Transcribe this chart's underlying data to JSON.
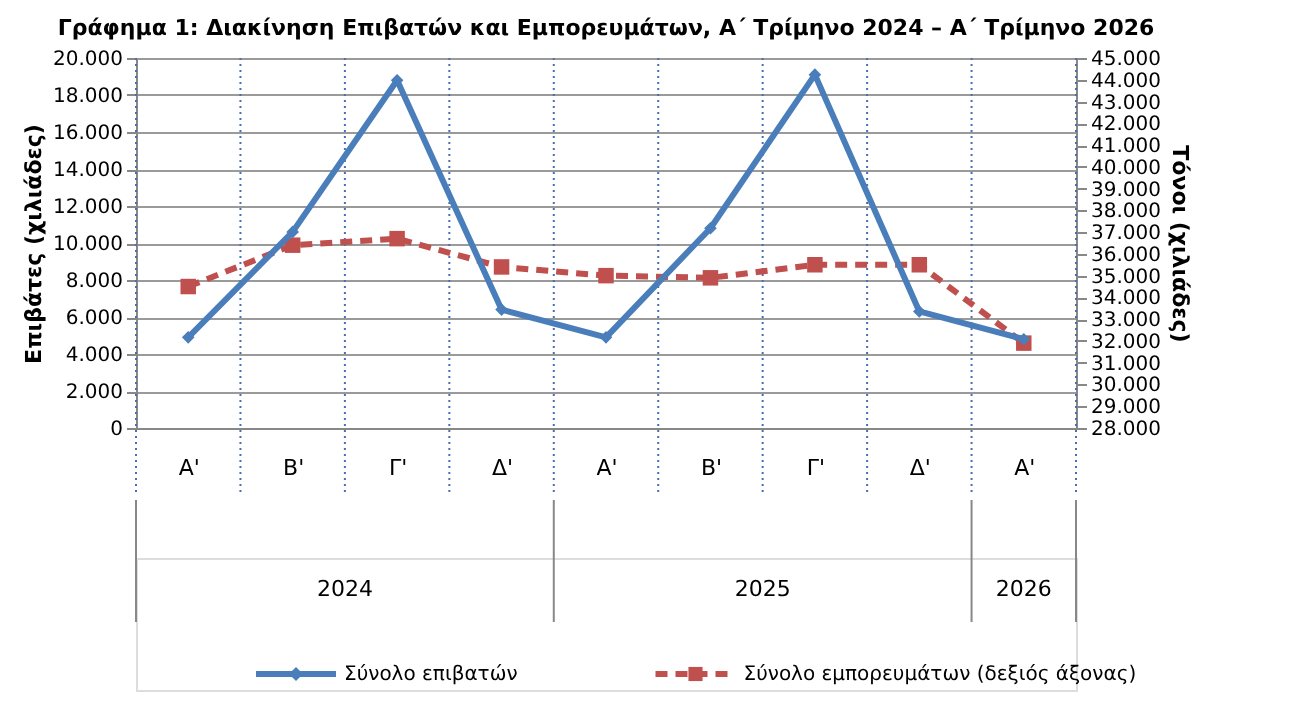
{
  "chart_data": {
    "type": "line",
    "title": "Γράφημα 1: Διακίνηση Επιβατών και Εμπορευμάτων, Α΄ Τρίμηνο 2024 – Α΄ Τρίμηνο 2026",
    "categories": [
      "Α'",
      "Β'",
      "Γ'",
      "Δ'",
      "Α'",
      "Β'",
      "Γ'",
      "Δ'",
      "Α'"
    ],
    "ylabel": "Επιβάτες  (χιλιάδες)",
    "y2label": "Τόνοι  (χιλιάδες)",
    "series": [
      {
        "name": "Σύνολο επιβατών",
        "color": "#4a7ebb",
        "marker": "diamond",
        "line_style": "solid",
        "values": [
          4900,
          10600,
          18800,
          6400,
          4900,
          10800,
          19100,
          6300,
          4800
        ]
      },
      {
        "name": "Σύνολο εμπορευμάτων (δεξιός άξονας)",
        "color": "#c0504d",
        "marker": "square",
        "line_style": "dashed",
        "axis": "y2",
        "values": [
          34500,
          36400,
          36700,
          35400,
          35000,
          34900,
          35500,
          35500,
          31900
        ]
      }
    ],
    "ylim": [
      0,
      20000
    ],
    "yticks": [
      {
        "value": 0,
        "label": "0"
      },
      {
        "value": 2000,
        "label": "2.000"
      },
      {
        "value": 4000,
        "label": "4.000"
      },
      {
        "value": 6000,
        "label": "6.000"
      },
      {
        "value": 8000,
        "label": "8.000"
      },
      {
        "value": 10000,
        "label": "10.000"
      },
      {
        "value": 12000,
        "label": "12.000"
      },
      {
        "value": 14000,
        "label": "14.000"
      },
      {
        "value": 16000,
        "label": "16.000"
      },
      {
        "value": 18000,
        "label": "18.000"
      },
      {
        "value": 20000,
        "label": "20.000"
      }
    ],
    "y2lim": [
      28000,
      45000
    ],
    "y2ticks": [
      {
        "value": 28000,
        "label": "28.000"
      },
      {
        "value": 29000,
        "label": "29.000"
      },
      {
        "value": 30000,
        "label": "30.000"
      },
      {
        "value": 31000,
        "label": "31.000"
      },
      {
        "value": 32000,
        "label": "32.000"
      },
      {
        "value": 33000,
        "label": "33.000"
      },
      {
        "value": 34000,
        "label": "34.000"
      },
      {
        "value": 35000,
        "label": "35.000"
      },
      {
        "value": 36000,
        "label": "36.000"
      },
      {
        "value": 37000,
        "label": "37.000"
      },
      {
        "value": 38000,
        "label": "38.000"
      },
      {
        "value": 39000,
        "label": "39.000"
      },
      {
        "value": 40000,
        "label": "40.000"
      },
      {
        "value": 41000,
        "label": "41.000"
      },
      {
        "value": 42000,
        "label": "42.000"
      },
      {
        "value": 43000,
        "label": "43.000"
      },
      {
        "value": 44000,
        "label": "44.000"
      },
      {
        "value": 45000,
        "label": "45.000"
      }
    ],
    "annotations": [
      "2024",
      "2025",
      "2026"
    ],
    "grid": true,
    "legend": "bottom"
  }
}
